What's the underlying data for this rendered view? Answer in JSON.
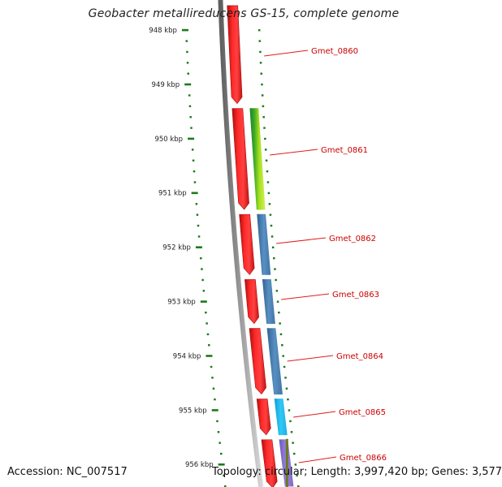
{
  "title": "Geobacter metallireducens GS-15, complete genome",
  "footer": {
    "accession": "Accession: NC_007517",
    "summary": "Topology: circular; Length: 3,997,420 bp; Genes: 3,577"
  },
  "colors": {
    "ruler_tick": "#1b7a1b",
    "backbone": "#8c8c8c",
    "forward_strand": "#e31b1b",
    "gene_label": "#cc0000",
    "leader_line": "#e31b1b",
    "gene_0861": "#9ad91a",
    "gene_0862": "#4f84b5",
    "gene_0865": "#19b4e6",
    "gene_0866": "#8a6fd1"
  },
  "ruler": {
    "unit": "kbp",
    "ticks": [
      {
        "kbp": 948,
        "label": "948 kbp"
      },
      {
        "kbp": 949,
        "label": "949 kbp"
      },
      {
        "kbp": 950,
        "label": "950 kbp"
      },
      {
        "kbp": 951,
        "label": "951 kbp"
      },
      {
        "kbp": 952,
        "label": "952 kbp"
      },
      {
        "kbp": 953,
        "label": "953 kbp"
      },
      {
        "kbp": 954,
        "label": "954 kbp"
      },
      {
        "kbp": 955,
        "label": "955 kbp"
      },
      {
        "kbp": 956,
        "label": "956 kbp"
      }
    ]
  },
  "genes": [
    {
      "id": "Gmet_0860",
      "label": "Gmet_0860",
      "start_kbp": 947.55,
      "end_kbp": 949.4,
      "strand": "forward"
    },
    {
      "id": "Gmet_0861",
      "label": "Gmet_0861",
      "start_kbp": 949.4,
      "end_kbp": 951.35,
      "strand": "forward"
    },
    {
      "id": "Gmet_0862",
      "label": "Gmet_0862",
      "start_kbp": 951.35,
      "end_kbp": 952.55,
      "strand": "forward"
    },
    {
      "id": "Gmet_0863",
      "label": "Gmet_0863",
      "start_kbp": 952.55,
      "end_kbp": 953.45,
      "strand": "forward"
    },
    {
      "id": "Gmet_0864",
      "label": "Gmet_0864",
      "start_kbp": 953.45,
      "end_kbp": 954.75,
      "strand": "forward"
    },
    {
      "id": "Gmet_0865",
      "label": "Gmet_0865",
      "start_kbp": 954.75,
      "end_kbp": 955.5,
      "strand": "forward"
    },
    {
      "id": "Gmet_0866",
      "label": "Gmet_0866",
      "start_kbp": 955.5,
      "end_kbp": 956.5,
      "strand": "forward"
    }
  ],
  "feature_bands": [
    {
      "gene": "Gmet_0861",
      "color": "#9ad91a"
    },
    {
      "gene": "Gmet_0862",
      "color": "#4f84b5"
    },
    {
      "gene": "Gmet_0863",
      "color": "#4f84b5"
    },
    {
      "gene": "Gmet_0864",
      "color": "#4f84b5"
    },
    {
      "gene": "Gmet_0865",
      "color": "#19b4e6"
    },
    {
      "gene": "Gmet_0866",
      "color": "#8a6fd1"
    }
  ]
}
